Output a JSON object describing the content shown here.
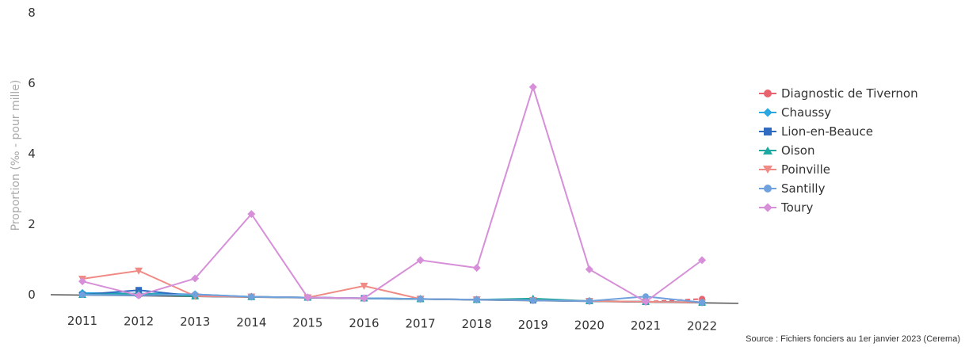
{
  "chart_data": {
    "type": "line",
    "title": "",
    "xlabel": "",
    "ylabel": "Proportion (‰ - pour mille)",
    "ylim": [
      0,
      8
    ],
    "yticks": [
      0,
      2,
      4,
      6,
      8
    ],
    "grid": false,
    "legend_position": "right",
    "x": [
      "2011",
      "2012",
      "2013",
      "2014",
      "2015",
      "2016",
      "2017",
      "2018",
      "2019",
      "2020",
      "2021",
      "2022"
    ],
    "series": [
      {
        "name": "Diagnostic de Tivernon",
        "color": "#e8636f",
        "marker": "circle",
        "dashed": true,
        "values": [
          null,
          null,
          null,
          null,
          null,
          null,
          null,
          null,
          null,
          null,
          0.0,
          0.1
        ]
      },
      {
        "name": "Chaussy",
        "color": "#2aa7e0",
        "marker": "diamond",
        "values": [
          0.05,
          0.05,
          0.05,
          0.0,
          0.0,
          0.0,
          0.0,
          0.0,
          0.0,
          0.0,
          0.0,
          0.0
        ]
      },
      {
        "name": "Lion-en-Beauce",
        "color": "#2f6cc1",
        "marker": "square",
        "values": [
          0.0,
          0.15,
          0.0,
          0.0,
          0.0,
          0.0,
          0.0,
          0.0,
          0.0,
          0.0,
          0.0,
          0.0
        ]
      },
      {
        "name": "Oison",
        "color": "#1fa7a2",
        "marker": "triangle",
        "values": [
          0.0,
          0.05,
          0.0,
          0.0,
          0.0,
          0.0,
          0.0,
          0.0,
          0.05,
          0.0,
          0.0,
          0.0
        ]
      },
      {
        "name": "Poinville",
        "color": "#f08a84",
        "marker": "triangle-down",
        "values": [
          0.45,
          0.7,
          0.0,
          0.0,
          0.0,
          0.35,
          0.0,
          0.0,
          0.0,
          0.0,
          0.0,
          0.0
        ]
      },
      {
        "name": "Santilly",
        "color": "#6fa1dd",
        "marker": "circle",
        "values": [
          0.0,
          0.0,
          0.05,
          0.0,
          0.0,
          0.0,
          0.0,
          0.0,
          0.0,
          0.0,
          0.15,
          0.0
        ]
      },
      {
        "name": "Toury",
        "color": "#d68fd8",
        "marker": "diamond",
        "values": [
          0.38,
          0.0,
          0.5,
          2.35,
          0.0,
          0.0,
          1.1,
          0.9,
          6.05,
          0.9,
          0.0,
          1.2
        ]
      }
    ]
  },
  "source": "Source : Fichiers fonciers au 1er janvier 2023 (Cerema)"
}
